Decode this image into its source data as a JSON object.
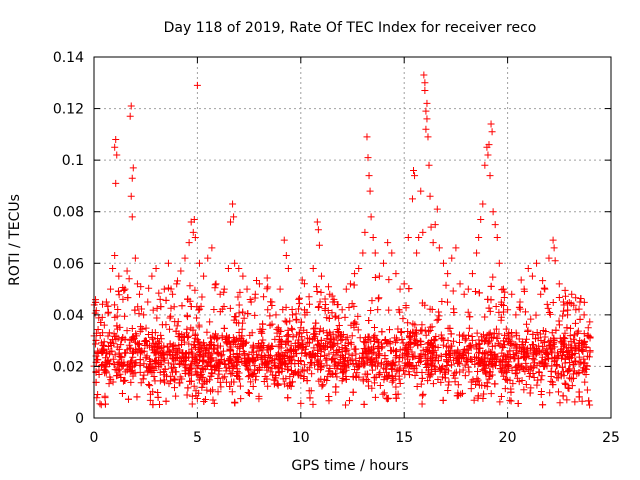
{
  "chart_data": {
    "type": "scatter",
    "title": "Day 118 of 2019, Rate Of TEC Index for receiver reco",
    "xlabel": "GPS time / hours",
    "ylabel": "ROTI / TECUs",
    "xlim": [
      0,
      25
    ],
    "ylim": [
      0,
      0.14
    ],
    "x_ticks": [
      0,
      5,
      10,
      15,
      20,
      25
    ],
    "x_tick_labels": [
      "0",
      "5",
      "10",
      "15",
      "20",
      "25"
    ],
    "y_ticks": [
      0,
      0.02,
      0.04,
      0.06,
      0.08,
      0.1,
      0.12,
      0.14
    ],
    "y_tick_labels": [
      "0",
      "0.02",
      "0.04",
      "0.06",
      "0.08",
      "0.1",
      "0.12",
      "0.14"
    ],
    "grid": true,
    "marker": "+",
    "color": "#ff0000",
    "series": [
      {
        "name": "ROTI",
        "points": [
          [
            0.1,
            0.018
          ],
          [
            0.2,
            0.025
          ],
          [
            0.3,
            0.032
          ],
          [
            0.4,
            0.039
          ],
          [
            0.5,
            0.036
          ],
          [
            0.6,
            0.045
          ],
          [
            0.7,
            0.041
          ],
          [
            0.8,
            0.05
          ],
          [
            0.9,
            0.058
          ],
          [
            1.0,
            0.063
          ],
          [
            1.0,
            0.105
          ],
          [
            1.05,
            0.108
          ],
          [
            1.05,
            0.091
          ],
          [
            1.1,
            0.102
          ],
          [
            1.2,
            0.055
          ],
          [
            1.4,
            0.046
          ],
          [
            1.5,
            0.05
          ],
          [
            1.6,
            0.057
          ],
          [
            1.7,
            0.054
          ],
          [
            1.75,
            0.117
          ],
          [
            1.8,
            0.121
          ],
          [
            1.8,
            0.086
          ],
          [
            1.85,
            0.078
          ],
          [
            1.85,
            0.093
          ],
          [
            1.9,
            0.097
          ],
          [
            2.0,
            0.062
          ],
          [
            2.1,
            0.052
          ],
          [
            2.2,
            0.048
          ],
          [
            2.4,
            0.04
          ],
          [
            2.6,
            0.045
          ],
          [
            2.8,
            0.055
          ],
          [
            3.0,
            0.058
          ],
          [
            3.2,
            0.046
          ],
          [
            3.4,
            0.05
          ],
          [
            3.6,
            0.06
          ],
          [
            3.8,
            0.048
          ],
          [
            4.0,
            0.052
          ],
          [
            4.2,
            0.057
          ],
          [
            4.4,
            0.062
          ],
          [
            4.6,
            0.068
          ],
          [
            4.7,
            0.076
          ],
          [
            4.8,
            0.072
          ],
          [
            4.85,
            0.077
          ],
          [
            4.9,
            0.07
          ],
          [
            5.0,
            0.129
          ],
          [
            5.1,
            0.06
          ],
          [
            5.3,
            0.055
          ],
          [
            5.5,
            0.062
          ],
          [
            5.7,
            0.066
          ],
          [
            5.9,
            0.052
          ],
          [
            6.1,
            0.048
          ],
          [
            6.3,
            0.05
          ],
          [
            6.5,
            0.058
          ],
          [
            6.6,
            0.076
          ],
          [
            6.7,
            0.083
          ],
          [
            6.75,
            0.078
          ],
          [
            6.8,
            0.06
          ],
          [
            7.0,
            0.058
          ],
          [
            7.2,
            0.055
          ],
          [
            7.4,
            0.05
          ],
          [
            7.6,
            0.045
          ],
          [
            7.8,
            0.048
          ],
          [
            8.0,
            0.052
          ],
          [
            8.2,
            0.047
          ],
          [
            8.4,
            0.042
          ],
          [
            8.6,
            0.045
          ],
          [
            8.8,
            0.04
          ],
          [
            9.0,
            0.05
          ],
          [
            9.2,
            0.069
          ],
          [
            9.3,
            0.063
          ],
          [
            9.4,
            0.058
          ],
          [
            9.6,
            0.04
          ],
          [
            9.8,
            0.038
          ],
          [
            10.0,
            0.035
          ],
          [
            10.2,
            0.04
          ],
          [
            10.4,
            0.047
          ],
          [
            10.6,
            0.058
          ],
          [
            10.8,
            0.076
          ],
          [
            10.85,
            0.073
          ],
          [
            10.9,
            0.067
          ],
          [
            11.0,
            0.055
          ],
          [
            11.2,
            0.044
          ],
          [
            11.4,
            0.048
          ],
          [
            11.6,
            0.046
          ],
          [
            11.8,
            0.044
          ],
          [
            12.0,
            0.042
          ],
          [
            12.2,
            0.05
          ],
          [
            12.4,
            0.052
          ],
          [
            12.6,
            0.056
          ],
          [
            12.8,
            0.058
          ],
          [
            13.0,
            0.064
          ],
          [
            13.1,
            0.072
          ],
          [
            13.2,
            0.109
          ],
          [
            13.25,
            0.101
          ],
          [
            13.3,
            0.094
          ],
          [
            13.35,
            0.088
          ],
          [
            13.4,
            0.078
          ],
          [
            13.5,
            0.07
          ],
          [
            13.6,
            0.064
          ],
          [
            13.8,
            0.055
          ],
          [
            14.0,
            0.06
          ],
          [
            14.2,
            0.068
          ],
          [
            14.4,
            0.064
          ],
          [
            14.6,
            0.056
          ],
          [
            14.8,
            0.05
          ],
          [
            15.0,
            0.052
          ],
          [
            15.2,
            0.07
          ],
          [
            15.4,
            0.085
          ],
          [
            15.45,
            0.096
          ],
          [
            15.5,
            0.094
          ],
          [
            15.6,
            0.064
          ],
          [
            15.7,
            0.07
          ],
          [
            15.8,
            0.088
          ],
          [
            15.9,
            0.072
          ],
          [
            15.95,
            0.133
          ],
          [
            16.0,
            0.13
          ],
          [
            16.0,
            0.127
          ],
          [
            16.05,
            0.119
          ],
          [
            16.05,
            0.112
          ],
          [
            16.1,
            0.116
          ],
          [
            16.1,
            0.122
          ],
          [
            16.15,
            0.109
          ],
          [
            16.2,
            0.098
          ],
          [
            16.25,
            0.086
          ],
          [
            16.3,
            0.074
          ],
          [
            16.4,
            0.068
          ],
          [
            16.5,
            0.075
          ],
          [
            16.6,
            0.081
          ],
          [
            16.7,
            0.066
          ],
          [
            16.9,
            0.06
          ],
          [
            17.1,
            0.056
          ],
          [
            17.3,
            0.062
          ],
          [
            17.5,
            0.066
          ],
          [
            17.7,
            0.052
          ],
          [
            17.9,
            0.048
          ],
          [
            18.1,
            0.05
          ],
          [
            18.3,
            0.056
          ],
          [
            18.5,
            0.064
          ],
          [
            18.6,
            0.07
          ],
          [
            18.7,
            0.077
          ],
          [
            18.8,
            0.083
          ],
          [
            18.9,
            0.098
          ],
          [
            19.0,
            0.105
          ],
          [
            19.05,
            0.102
          ],
          [
            19.1,
            0.106
          ],
          [
            19.15,
            0.094
          ],
          [
            19.2,
            0.114
          ],
          [
            19.25,
            0.111
          ],
          [
            19.3,
            0.08
          ],
          [
            19.4,
            0.075
          ],
          [
            19.5,
            0.07
          ],
          [
            19.6,
            0.06
          ],
          [
            19.8,
            0.05
          ],
          [
            20.0,
            0.042
          ],
          [
            20.2,
            0.048
          ],
          [
            20.4,
            0.04
          ],
          [
            20.6,
            0.045
          ],
          [
            20.8,
            0.05
          ],
          [
            21.0,
            0.058
          ],
          [
            21.2,
            0.055
          ],
          [
            21.4,
            0.06
          ],
          [
            21.6,
            0.048
          ],
          [
            21.8,
            0.05
          ],
          [
            22.0,
            0.062
          ],
          [
            22.2,
            0.069
          ],
          [
            22.25,
            0.066
          ],
          [
            22.3,
            0.061
          ],
          [
            22.5,
            0.052
          ],
          [
            22.7,
            0.045
          ],
          [
            22.9,
            0.04
          ],
          [
            23.1,
            0.048
          ],
          [
            23.3,
            0.042
          ],
          [
            23.5,
            0.045
          ],
          [
            23.7,
            0.04
          ],
          [
            23.9,
            0.035
          ]
        ]
      }
    ]
  }
}
